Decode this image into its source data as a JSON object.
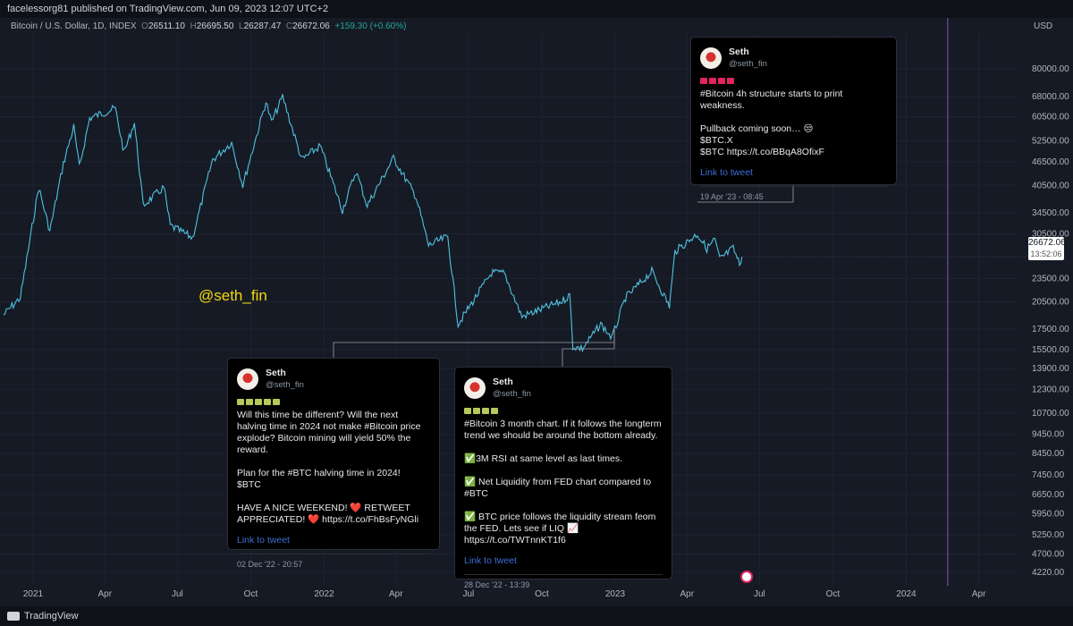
{
  "header": {
    "publisher": "facelessorg81 published on TradingView.com, Jun 09, 2023 12:07 UTC+2"
  },
  "legend": {
    "symbol": "Bitcoin / U.S. Dollar, 1D, INDEX",
    "open_label": "O",
    "open": "26511.10",
    "high_label": "H",
    "high": "26695.50",
    "low_label": "L",
    "low": "26287.47",
    "close_label": "C",
    "close": "26672.06",
    "change": "+159.30 (+0.60%)"
  },
  "watermark": "@seth_fin",
  "price_tag": {
    "price": "26672.06",
    "countdown": "13:52:06"
  },
  "footer": {
    "brand": "TradingView"
  },
  "colors": {
    "background": "#161a25",
    "line": "#4fc3e0",
    "grid": "#1f2330",
    "watermark": "#f5d90a",
    "link": "#3b6fd6",
    "current_time": "#7e57c2"
  },
  "tweets": [
    {
      "name": "Seth",
      "handle": "@seth_fin",
      "emoji": "siren-icon",
      "emoji_count": 4,
      "paragraphs": [
        "#Bitcoin 4h structure starts to print weakness.",
        "Pullback coming soon… 😒\n$BTC.X\n$BTC https://t.co/BBqA8OfixF"
      ],
      "link": "Link to tweet",
      "date": "19 Apr '23 - 08:45"
    },
    {
      "name": "Seth",
      "handle": "@seth_fin",
      "emoji": "money-icon",
      "emoji_count": 5,
      "paragraphs": [
        "Will this time be different? Will the next halving time in 2024 not make #Bitcoin price explode? Bitcoin mining will yield 50% the reward.",
        "Plan for the #BTC halving time in 2024!\n$BTC",
        "HAVE A NICE WEEKEND! ❤️ RETWEET APPRECIATED! ❤️ https://t.co/FhBsFyNGli"
      ],
      "link": "Link to tweet",
      "date": "02 Dec '22 - 20:57"
    },
    {
      "name": "Seth",
      "handle": "@seth_fin",
      "emoji": "money-icon",
      "emoji_count": 4,
      "paragraphs": [
        "#Bitcoin 3 month chart. If it follows the longterm trend we should be around the bottom already.",
        "✅3M RSI at same level as last times.",
        "✅ Net Liquidity from FED chart compared to #BTC",
        "✅ BTC price follows the liquidity stream feom the FED. Lets see if LIQ 📈 https://t.co/TWTnnKT1f6"
      ],
      "link": "Link to tweet",
      "date": "28 Dec '22 - 13:39"
    }
  ],
  "chart_data": {
    "type": "line",
    "x_axis_labels": [
      "2021",
      "Apr",
      "Jul",
      "Oct",
      "2022",
      "Apr",
      "Jul",
      "Oct",
      "2023",
      "Apr",
      "Jul",
      "Oct",
      "2024",
      "Apr"
    ],
    "y_axis_unit": "USD",
    "y_axis_labels": [
      80000,
      68000,
      60500,
      52500,
      46500,
      40500,
      34500,
      30500,
      26672.06,
      23500,
      20500,
      17500,
      15500,
      13900,
      12300,
      10700,
      9450,
      8450,
      7450,
      6650,
      5950,
      5250,
      4700,
      4220
    ],
    "y_scale": "log",
    "ylim": [
      4000,
      90000
    ],
    "grid": true,
    "series": [
      {
        "values": [
          [
            "2020-11-25",
            19000
          ],
          [
            "2020-12-16",
            21000
          ],
          [
            "2021-01-08",
            40000
          ],
          [
            "2021-01-22",
            31000
          ],
          [
            "2021-02-08",
            46000
          ],
          [
            "2021-02-21",
            57000
          ],
          [
            "2021-02-28",
            45000
          ],
          [
            "2021-03-13",
            60000
          ],
          [
            "2021-04-14",
            63500
          ],
          [
            "2021-04-25",
            49000
          ],
          [
            "2021-05-08",
            58500
          ],
          [
            "2021-05-19",
            36000
          ],
          [
            "2021-06-14",
            40000
          ],
          [
            "2021-06-22",
            32000
          ],
          [
            "2021-07-20",
            29800
          ],
          [
            "2021-08-14",
            47000
          ],
          [
            "2021-09-07",
            52000
          ],
          [
            "2021-09-21",
            40500
          ],
          [
            "2021-10-20",
            66000
          ],
          [
            "2021-10-27",
            58500
          ],
          [
            "2021-11-10",
            68000
          ],
          [
            "2021-12-04",
            47000
          ],
          [
            "2021-12-27",
            51000
          ],
          [
            "2022-01-24",
            35000
          ],
          [
            "2022-02-10",
            44000
          ],
          [
            "2022-02-24",
            36000
          ],
          [
            "2022-03-29",
            47500
          ],
          [
            "2022-04-26",
            38000
          ],
          [
            "2022-05-12",
            28500
          ],
          [
            "2022-06-05",
            30000
          ],
          [
            "2022-06-18",
            18000
          ],
          [
            "2022-07-30",
            24300
          ],
          [
            "2022-08-15",
            24200
          ],
          [
            "2022-09-06",
            18800
          ],
          [
            "2022-10-25",
            20500
          ],
          [
            "2022-11-05",
            21300
          ],
          [
            "2022-11-09",
            15800
          ],
          [
            "2022-11-21",
            15600
          ],
          [
            "2022-12-14",
            18000
          ],
          [
            "2022-12-28",
            16600
          ],
          [
            "2023-01-14",
            21000
          ],
          [
            "2023-02-16",
            24500
          ],
          [
            "2023-03-10",
            20000
          ],
          [
            "2023-03-17",
            27500
          ],
          [
            "2023-04-14",
            30500
          ],
          [
            "2023-04-26",
            28000
          ],
          [
            "2023-05-06",
            29500
          ],
          [
            "2023-05-12",
            26300
          ],
          [
            "2023-05-29",
            28000
          ],
          [
            "2023-06-06",
            25500
          ],
          [
            "2023-06-09",
            26672
          ]
        ]
      }
    ]
  }
}
